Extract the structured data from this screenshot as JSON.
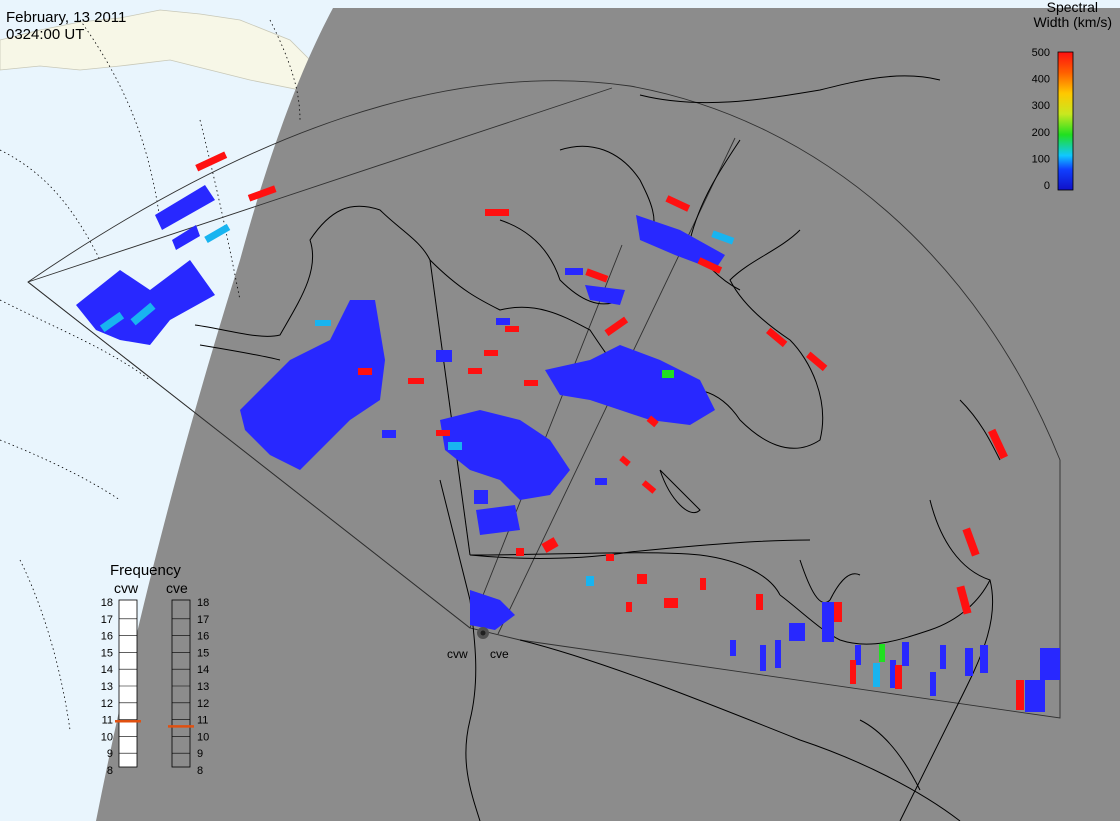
{
  "header": {
    "date": "February, 13 2011",
    "time": "0324:00 UT"
  },
  "colorbar": {
    "title_line1": "Spectral",
    "title_line2": "Width (km/s)",
    "ticks": [
      "500",
      "400",
      "300",
      "200",
      "100",
      "0"
    ],
    "range": [
      0,
      500
    ]
  },
  "frequency": {
    "title": "Frequency",
    "left_radar": "cvw",
    "right_radar": "cve",
    "ticks": [
      "18",
      "17",
      "16",
      "15",
      "14",
      "13",
      "12",
      "11",
      "10",
      "9",
      "8"
    ],
    "cvw_value": 10.9,
    "cve_value": 10.6
  },
  "radars": {
    "west_label": "cvw",
    "east_label": "cve"
  },
  "colors": {
    "ocean": "#e9f5fd",
    "land_light": "#f7f7e7",
    "night_shade": "#8c8c8c",
    "coast": "#000000",
    "low_width": "#2828ff",
    "high_width": "#ff1010",
    "mid_width": "#18b4f0",
    "green": "#20e020",
    "freq_mark": "#e05010"
  }
}
